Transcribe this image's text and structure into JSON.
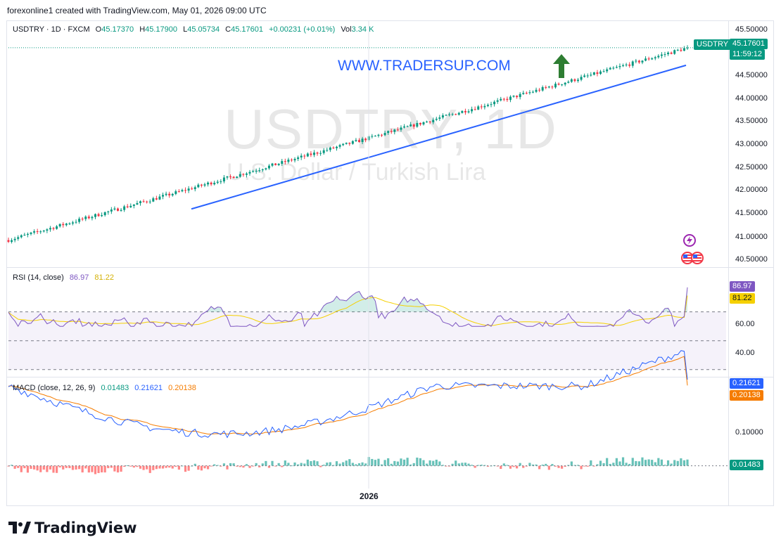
{
  "credit": "forexonline1 created with TradingView.com, May 01, 2026 09:00 UTC",
  "legend_main": {
    "title": "USDTRY · 1D · FXCM",
    "o_label": "O",
    "o": "45.17370",
    "h_label": "H",
    "h": "45.17900",
    "l_label": "L",
    "l": "45.05734",
    "c_label": "C",
    "c": "45.17601",
    "change": "+0.00231 (+0.01%)",
    "vol_label": "Vol",
    "vol": "3.34 K"
  },
  "watermark": {
    "symbol": "USDTRY, 1D",
    "description": "U.S. Dollar / Turkish Lira"
  },
  "annotation_site": "WWW.TRADERSUP.COM",
  "symbol_badge": "USDTRY",
  "price_tag": {
    "price": "45.17601",
    "countdown": "11:59:12"
  },
  "price_axis_labels": [
    "45.50000",
    "45.00000",
    "44.50000",
    "44.00000",
    "43.50000",
    "43.00000",
    "42.50000",
    "42.00000",
    "41.50000",
    "41.00000",
    "40.50000"
  ],
  "rsi": {
    "legend": "RSI (14, close)",
    "rsi_value": "86.97",
    "ma_value": "81.22",
    "axis_labels": [
      "60.00",
      "40.00"
    ]
  },
  "macd": {
    "legend": "MACD (close, 12, 26, 9)",
    "hist_value": "0.01483",
    "macd_value": "0.21621",
    "signal_value": "0.20138",
    "axis_labels": [
      "0.10000"
    ]
  },
  "time_label": "2026",
  "brand": "TradingView",
  "colors": {
    "up": "#089981",
    "down": "#f23645",
    "trendline": "#2962ff",
    "arrow": "#2e7d32",
    "rsi_line": "#7e57c2",
    "rsi_ma": "#f5d000",
    "macd_line": "#2962ff",
    "signal_line": "#f57c00"
  },
  "chart_data": [
    {
      "type": "candlestick",
      "title": "USDTRY, 1D",
      "ylim": [
        40.4,
        45.6
      ],
      "x_tick_labels": [
        "2026"
      ],
      "x_range": [
        "2025-07-07",
        "2026-05-01"
      ],
      "close_approx": {
        "start": 40.85,
        "end": 45.17601
      },
      "last": {
        "open": 45.1737,
        "high": 45.179,
        "low": 45.05734,
        "close": 45.17601
      },
      "trendline": {
        "start": 41.55,
        "end": 44.78
      }
    },
    {
      "type": "line",
      "title": "RSI (14, close)",
      "series": [
        {
          "name": "RSI",
          "last": 86.97
        },
        {
          "name": "RSI-based MA",
          "last": 81.22
        }
      ]
    },
    {
      "type": "line",
      "title": "MACD (close, 12, 26, 9)",
      "series": [
        {
          "name": "MACD",
          "last": 0.21621
        },
        {
          "name": "Signal",
          "last": 0.20138
        },
        {
          "name": "Histogram",
          "last": 0.01483
        }
      ]
    }
  ]
}
